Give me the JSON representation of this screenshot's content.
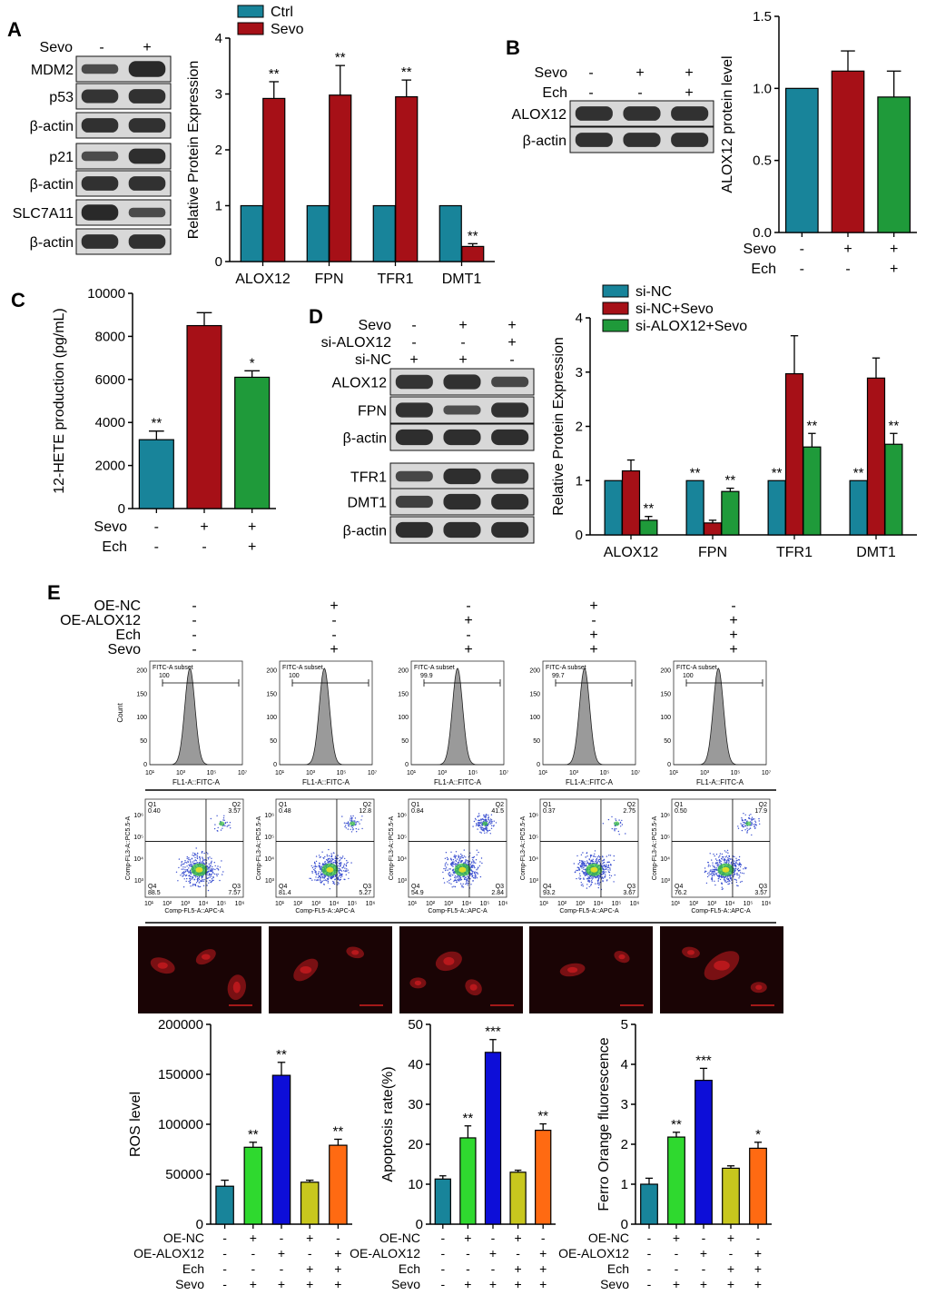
{
  "colors": {
    "teal": "#18849a",
    "darkred": "#a61017",
    "green": "#1f9a3a",
    "blue": "#0d0ed8",
    "brightgreen": "#2fd92f",
    "olive": "#c8c71e",
    "orange": "#ff6a12",
    "blot_bg": "#d8d8d8",
    "band": "#202020",
    "histogram_fill": "#9a9a9a",
    "fluor_bg": "#1a0405",
    "fluor_cell": "#9a1418"
  },
  "panel_labels": [
    "A",
    "B",
    "C",
    "D",
    "E"
  ],
  "blotA": {
    "treatment_label": "Sevo",
    "signs": [
      "-",
      "+"
    ],
    "rows": [
      {
        "label": "MDM2",
        "band": [
          0.55,
          1.0
        ]
      },
      {
        "label": "p53",
        "band": [
          0.85,
          0.9
        ]
      },
      {
        "label": "β-actin",
        "band": [
          0.9,
          0.9
        ]
      },
      {
        "label": "p21",
        "band": [
          0.55,
          0.95
        ]
      },
      {
        "label": "β-actin",
        "band": [
          0.9,
          0.9
        ]
      },
      {
        "label": "SLC7A11",
        "band": [
          1.0,
          0.55
        ]
      },
      {
        "label": "β-actin",
        "band": [
          0.9,
          0.9
        ]
      }
    ]
  },
  "blotB": {
    "conditions": [
      {
        "label": "Sevo",
        "signs": [
          "-",
          "+",
          "+"
        ]
      },
      {
        "label": "Ech",
        "signs": [
          "-",
          "-",
          "+"
        ]
      }
    ],
    "rows": [
      {
        "label": "ALOX12",
        "band": [
          0.9,
          0.9,
          0.9
        ]
      },
      {
        "label": "β-actin",
        "band": [
          0.9,
          0.9,
          0.9
        ]
      }
    ]
  },
  "blotD": {
    "conditions": [
      {
        "label": "Sevo",
        "signs": [
          "-",
          "+",
          "+"
        ]
      },
      {
        "label": "si-ALOX12",
        "signs": [
          "-",
          "-",
          "+"
        ]
      },
      {
        "label": "si-NC",
        "signs": [
          "+",
          "+",
          "-"
        ]
      }
    ],
    "rows": [
      {
        "label": "ALOX12",
        "band": [
          0.85,
          0.9,
          0.6
        ]
      },
      {
        "label": "FPN",
        "band": [
          0.9,
          0.5,
          0.9
        ]
      },
      {
        "label": "β-actin",
        "band": [
          0.95,
          0.95,
          0.95
        ]
      },
      {
        "label": "TFR1",
        "band": [
          0.6,
          0.95,
          0.9
        ]
      },
      {
        "label": "DMT1",
        "band": [
          0.7,
          0.95,
          0.95
        ]
      },
      {
        "label": "β-actin",
        "band": [
          0.95,
          0.95,
          0.95
        ]
      }
    ]
  },
  "panelE_conditions": {
    "rows": [
      {
        "label": "OE-NC",
        "signs": [
          "-",
          "+",
          "-",
          "+",
          "-"
        ]
      },
      {
        "label": "OE-ALOX12",
        "signs": [
          "-",
          "-",
          "+",
          "-",
          "+"
        ]
      },
      {
        "label": "Ech",
        "signs": [
          "-",
          "-",
          "-",
          "+",
          "+"
        ]
      },
      {
        "label": "Sevo",
        "signs": [
          "-",
          "+",
          "+",
          "+",
          "+"
        ]
      }
    ]
  },
  "histograms": {
    "ylabel": "Count",
    "xlabel": "FL1-A::FITC-A",
    "gate_label": "FITC-A subset",
    "x_ticks": [
      "10¹",
      "10³",
      "10⁵",
      "10⁷"
    ],
    "y_ticks": [
      "0",
      "50",
      "100",
      "150",
      "200"
    ],
    "gates": [
      "100",
      "100",
      "99.9",
      "99.7",
      "100"
    ],
    "peaks": [
      3.6,
      3.9,
      4.0,
      3.7,
      3.9
    ]
  },
  "scatter": {
    "ylabel": "Comp-FL3-A::PC5.5-A",
    "xlabel": "Comp-FL5-A::APC-A",
    "x_ticks": [
      "10¹",
      "10²",
      "10³",
      "10⁴",
      "10⁵",
      "10⁶"
    ],
    "y_ticks": [
      "10³",
      "10⁴",
      "10⁵",
      "10⁶"
    ],
    "quadrants": [
      {
        "Q1": "0.40",
        "Q2": "3.57",
        "Q3": "7.57",
        "Q4": "88.5"
      },
      {
        "Q1": "0.48",
        "Q2": "12.8",
        "Q3": "5.27",
        "Q4": "81.4"
      },
      {
        "Q1": "0.84",
        "Q2": "41.5",
        "Q3": "2.84",
        "Q4": "54.9"
      },
      {
        "Q1": "0.37",
        "Q2": "2.75",
        "Q3": "3.67",
        "Q4": "93.2"
      },
      {
        "Q1": "0.50",
        "Q2": "17.9",
        "Q3": "3.57",
        "Q4": "76.2"
      }
    ],
    "q_names": [
      "Q1",
      "Q2",
      "Q3",
      "Q4"
    ]
  },
  "chart_data": [
    {
      "id": "A",
      "type": "bar",
      "categories": [
        "ALOX12",
        "FPN",
        "TFR1",
        "DMT1"
      ],
      "series": [
        {
          "name": "Ctrl",
          "color": "teal",
          "values": [
            1,
            1,
            1,
            1
          ],
          "errors": [
            0,
            0,
            0,
            0
          ],
          "sig": [
            "",
            "",
            "",
            ""
          ]
        },
        {
          "name": "Sevo",
          "color": "darkred",
          "values": [
            2.92,
            2.98,
            2.95,
            0.27
          ],
          "errors": [
            0.3,
            0.53,
            0.3,
            0.05
          ],
          "sig": [
            "**",
            "**",
            "**",
            "**"
          ]
        }
      ],
      "ylabel": "Relative Protein Expression",
      "ylim": [
        0,
        4
      ],
      "yticks": [
        0,
        1,
        2,
        3,
        4
      ],
      "ytick_labels": [
        "0",
        "1",
        "2",
        "3",
        "4"
      ],
      "legend": "top-left"
    },
    {
      "id": "B",
      "type": "bar",
      "categories": [
        "1",
        "2",
        "3"
      ],
      "values": [
        1.0,
        1.12,
        0.94
      ],
      "errors": [
        0,
        0.14,
        0.18
      ],
      "colors": [
        "teal",
        "darkred",
        "green"
      ],
      "ylabel": "ALOX12 protein level",
      "ylim": [
        0,
        1.5
      ],
      "yticks": [
        0,
        0.5,
        1.0,
        1.5
      ],
      "ytick_labels": [
        "0.0",
        "0.5",
        "1.0",
        "1.5"
      ],
      "conditions": [
        {
          "label": "Sevo",
          "signs": [
            "-",
            "+",
            "+"
          ]
        },
        {
          "label": "Ech",
          "signs": [
            "-",
            "-",
            "+"
          ]
        }
      ]
    },
    {
      "id": "C",
      "type": "bar",
      "categories": [
        "1",
        "2",
        "3"
      ],
      "values": [
        3200,
        8500,
        6100
      ],
      "errors": [
        400,
        600,
        300
      ],
      "colors": [
        "teal",
        "darkred",
        "green"
      ],
      "sig": [
        "**",
        "",
        "*"
      ],
      "ylabel": "12-HETE production (pg/mL)",
      "ylim": [
        0,
        10000
      ],
      "yticks": [
        0,
        2000,
        4000,
        6000,
        8000,
        10000
      ],
      "ytick_labels": [
        "0",
        "2000",
        "4000",
        "6000",
        "8000",
        "10000"
      ],
      "conditions": [
        {
          "label": "Sevo",
          "signs": [
            "-",
            "+",
            "+"
          ]
        },
        {
          "label": "Ech",
          "signs": [
            "-",
            "-",
            "+"
          ]
        }
      ]
    },
    {
      "id": "D",
      "type": "bar",
      "categories": [
        "ALOX12",
        "FPN",
        "TFR1",
        "DMT1"
      ],
      "series": [
        {
          "name": "si-NC",
          "color": "teal",
          "values": [
            1,
            1,
            1,
            1
          ],
          "errors": [
            0,
            0,
            0,
            0
          ],
          "sig": [
            "",
            "**",
            "**",
            "**"
          ]
        },
        {
          "name": "si-NC+Sevo",
          "color": "darkred",
          "values": [
            1.18,
            0.22,
            2.97,
            2.89
          ],
          "errors": [
            0.2,
            0.05,
            0.7,
            0.37
          ],
          "sig": [
            "",
            "",
            "",
            ""
          ]
        },
        {
          "name": "si-ALOX12+Sevo",
          "color": "green",
          "values": [
            0.27,
            0.8,
            1.62,
            1.67
          ],
          "errors": [
            0.07,
            0.06,
            0.25,
            0.2
          ],
          "sig": [
            "**",
            "**",
            "**",
            "**"
          ]
        }
      ],
      "ylabel": "Relative Protein Expression",
      "ylim": [
        0,
        4
      ],
      "yticks": [
        0,
        1,
        2,
        3,
        4
      ],
      "ytick_labels": [
        "0",
        "1",
        "2",
        "3",
        "4"
      ],
      "legend": "top-left"
    },
    {
      "id": "E1",
      "type": "bar",
      "categories": [
        "1",
        "2",
        "3",
        "4",
        "5"
      ],
      "values": [
        38000,
        77000,
        149000,
        42000,
        79000
      ],
      "errors": [
        6000,
        5000,
        13000,
        2000,
        6000
      ],
      "colors": [
        "teal",
        "brightgreen",
        "blue",
        "olive",
        "orange"
      ],
      "sig": [
        "",
        "**",
        "**",
        "",
        "**"
      ],
      "ylabel": "ROS level",
      "ylim": [
        0,
        200000
      ],
      "yticks": [
        0,
        50000,
        100000,
        150000,
        200000
      ],
      "ytick_labels": [
        "0",
        "50000",
        "100000",
        "150000",
        "200000"
      ]
    },
    {
      "id": "E2",
      "type": "bar",
      "categories": [
        "1",
        "2",
        "3",
        "4",
        "5"
      ],
      "values": [
        11.3,
        21.6,
        43.0,
        13.0,
        23.5
      ],
      "errors": [
        0.8,
        3.0,
        3.2,
        0.5,
        1.6
      ],
      "colors": [
        "teal",
        "brightgreen",
        "blue",
        "olive",
        "orange"
      ],
      "sig": [
        "",
        "**",
        "***",
        "",
        "**"
      ],
      "ylabel": "Apoptosis rate(%)",
      "ylim": [
        0,
        50
      ],
      "yticks": [
        0,
        10,
        20,
        30,
        40,
        50
      ],
      "ytick_labels": [
        "0",
        "10",
        "20",
        "30",
        "40",
        "50"
      ]
    },
    {
      "id": "E3",
      "type": "bar",
      "categories": [
        "1",
        "2",
        "3",
        "4",
        "5"
      ],
      "values": [
        1.0,
        2.18,
        3.6,
        1.4,
        1.9
      ],
      "errors": [
        0.15,
        0.12,
        0.3,
        0.06,
        0.15
      ],
      "colors": [
        "teal",
        "brightgreen",
        "blue",
        "olive",
        "orange"
      ],
      "sig": [
        "",
        "**",
        "***",
        "",
        "*"
      ],
      "ylabel": "Ferro Orange fluorescence",
      "ylim": [
        0,
        5
      ],
      "yticks": [
        0,
        1,
        2,
        3,
        4,
        5
      ],
      "ytick_labels": [
        "0",
        "1",
        "2",
        "3",
        "4",
        "5"
      ]
    }
  ]
}
